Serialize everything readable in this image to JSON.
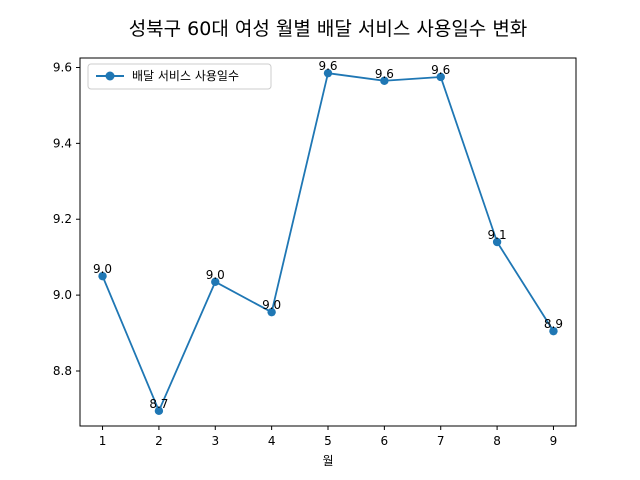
{
  "chart_data": {
    "type": "line",
    "title": "성북구 60대 여성 월별 배달 서비스 사용일수 변화",
    "xlabel": "월",
    "ylabel": "",
    "x": [
      1,
      2,
      3,
      4,
      5,
      6,
      7,
      8,
      9
    ],
    "x_ticks": [
      "1",
      "2",
      "3",
      "4",
      "5",
      "6",
      "7",
      "8",
      "9"
    ],
    "y_ticks": [
      "8.8",
      "9.0",
      "9.2",
      "9.4",
      "9.6"
    ],
    "xlim": [
      0.6,
      9.4
    ],
    "ylim": [
      8.655,
      9.625
    ],
    "grid": false,
    "legend_position": "upper left",
    "series": [
      {
        "name": "배달 서비스 사용일수",
        "color": "#1f77b4",
        "marker": "circle",
        "values": [
          9.05,
          8.695,
          9.035,
          8.955,
          9.585,
          9.565,
          9.575,
          9.14,
          8.905
        ],
        "labels": [
          "9.0",
          "8.7",
          "9.0",
          "9.0",
          "9.6",
          "9.6",
          "9.6",
          "9.1",
          "8.9"
        ]
      }
    ]
  }
}
